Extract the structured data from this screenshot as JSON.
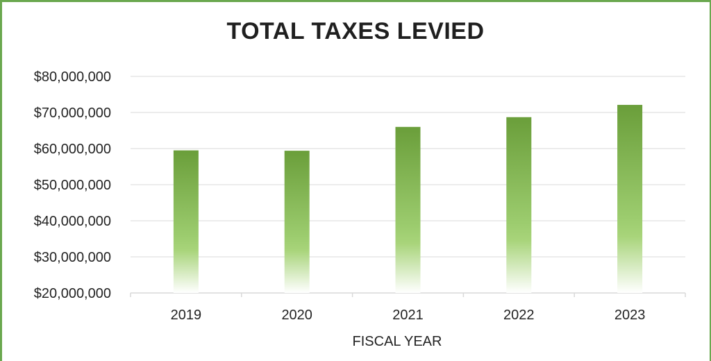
{
  "chart_data": {
    "type": "bar",
    "title": "TOTAL TAXES LEVIED",
    "xlabel": "FISCAL YEAR",
    "ylabel": "",
    "categories": [
      "2019",
      "2020",
      "2021",
      "2022",
      "2023"
    ],
    "values": [
      59500000,
      59400000,
      66000000,
      68700000,
      72100000
    ],
    "ylim": [
      20000000,
      80000000
    ],
    "yticks": [
      20000000,
      30000000,
      40000000,
      50000000,
      60000000,
      70000000,
      80000000
    ],
    "ytick_labels": [
      "$20,000,000",
      "$30,000,000",
      "$40,000,000",
      "$50,000,000",
      "$60,000,000",
      "$70,000,000",
      "$80,000,000"
    ],
    "grid": true,
    "legend": "none",
    "colors": {
      "bar_top": "#6a9e3a",
      "bar_mid": "#9ccc6e",
      "bar_bottom": "#ffffff",
      "frame": "#6aa84f",
      "grid": "#d9d9d9"
    }
  }
}
